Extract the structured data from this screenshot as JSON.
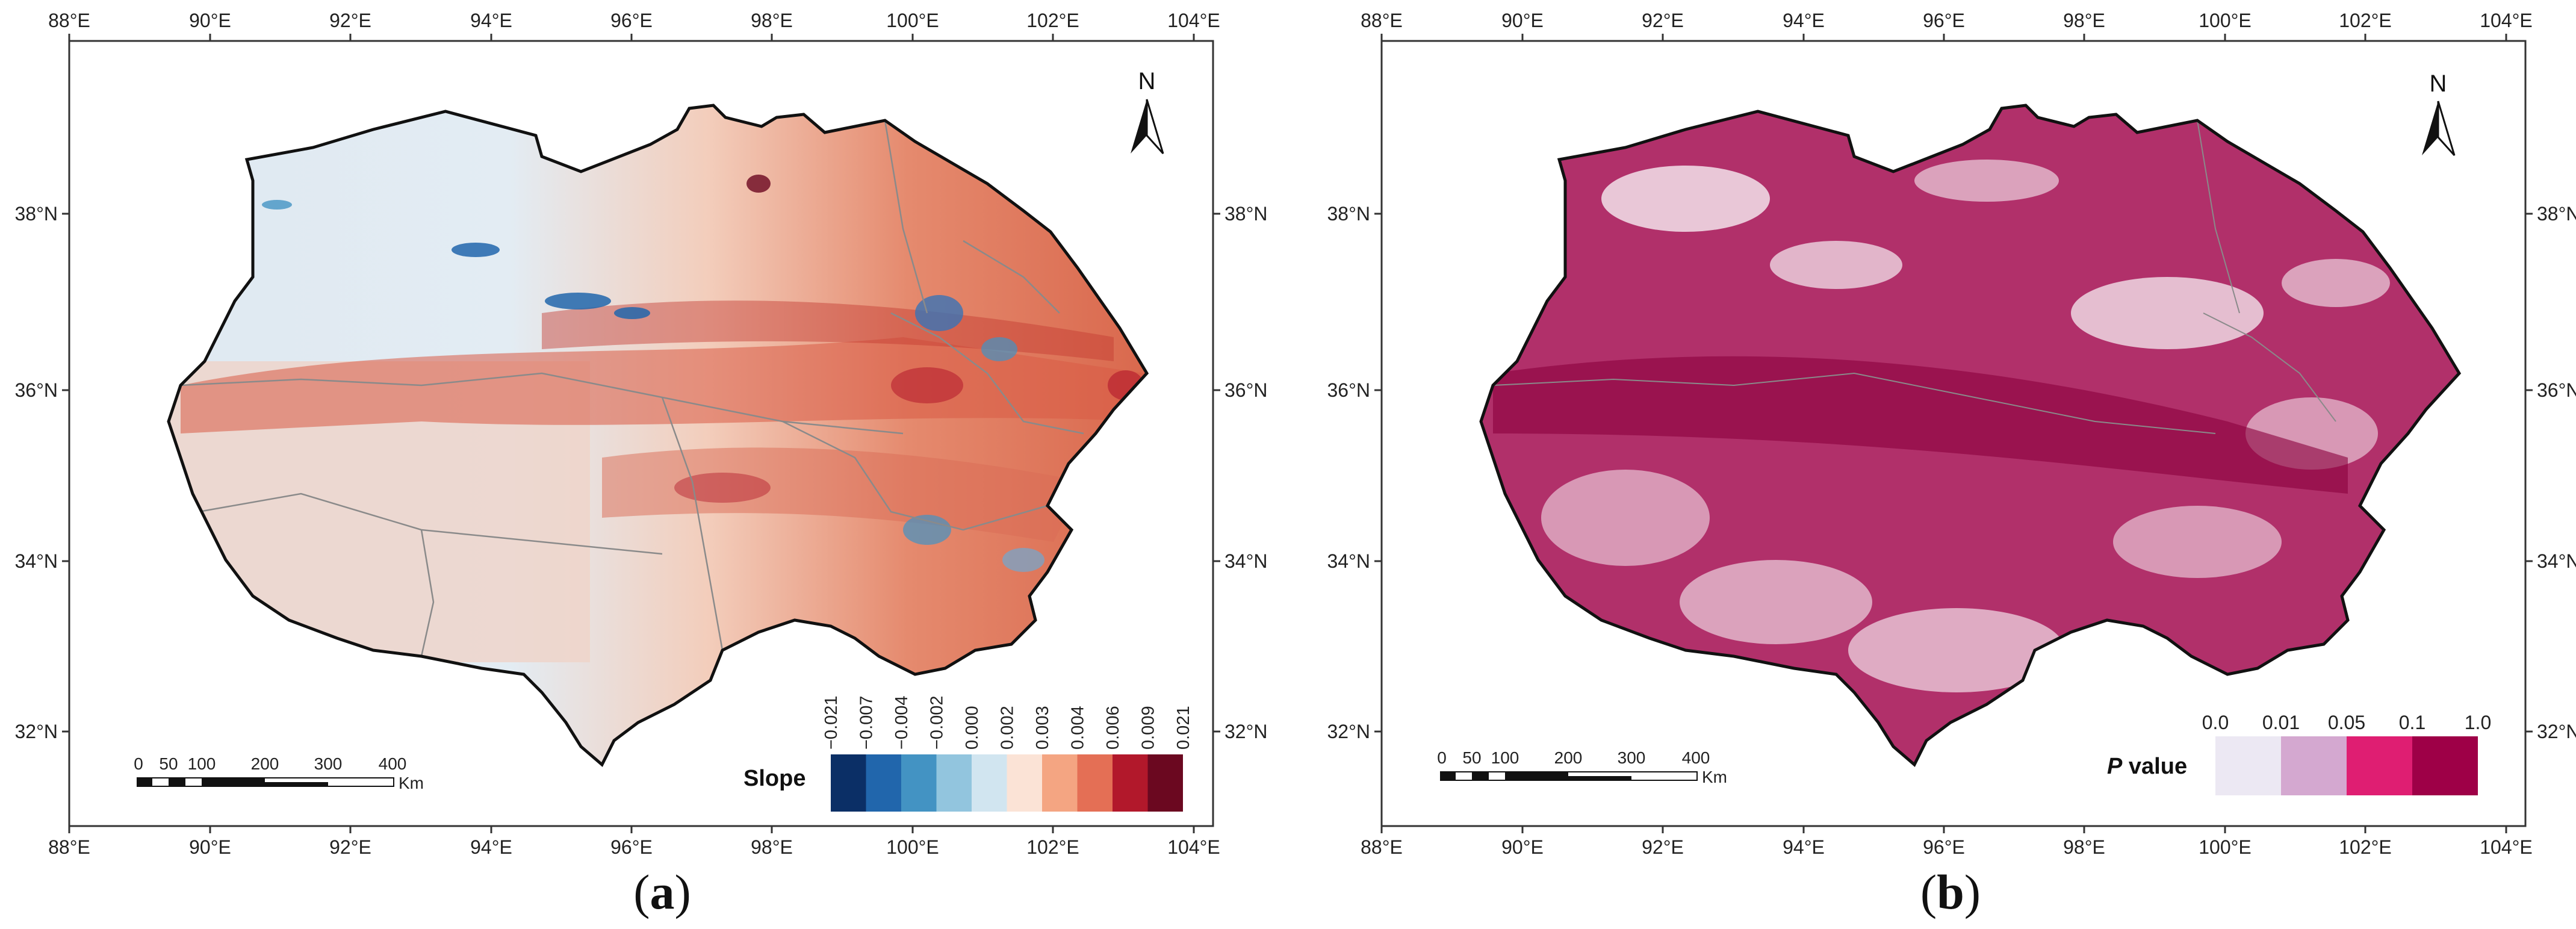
{
  "panels": [
    {
      "id": "a",
      "caption_open": "(",
      "caption_letter": "a",
      "caption_close": ")",
      "top_longitudes": [
        "88°E",
        "90°E",
        "92°E",
        "94°E",
        "96°E",
        "98°E",
        "100°E",
        "102°E",
        "104°E"
      ],
      "bottom_longitudes": [
        "88°E",
        "90°E",
        "92°E",
        "94°E",
        "96°E",
        "98°E",
        "100°E",
        "102°E",
        "104°E"
      ],
      "left_latitudes": [
        "38°N",
        "36°N",
        "34°N",
        "32°N"
      ],
      "right_latitudes": [
        "38°N",
        "36°N",
        "34°N",
        "32°N"
      ],
      "north_label": "N",
      "scale_labels": [
        "0",
        "50",
        "100",
        "200",
        "300",
        "400"
      ],
      "scale_unit": "Km",
      "legend": {
        "title": "Slope",
        "breaks": [
          "−0.021",
          "−0.007",
          "−0.004",
          "−0.002",
          "0.000",
          "0.002",
          "0.003",
          "0.004",
          "0.006",
          "0.009",
          "0.021"
        ],
        "colors": [
          "#0b2f66",
          "#2166ac",
          "#4393c3",
          "#92c5de",
          "#d1e5f0",
          "#fbe3d6",
          "#f4a582",
          "#e46f55",
          "#b2182b",
          "#6b0820"
        ]
      }
    },
    {
      "id": "b",
      "caption_open": "(",
      "caption_letter": "b",
      "caption_close": ")",
      "top_longitudes": [
        "88°E",
        "90°E",
        "92°E",
        "94°E",
        "96°E",
        "98°E",
        "100°E",
        "102°E",
        "104°E"
      ],
      "bottom_longitudes": [
        "88°E",
        "90°E",
        "92°E",
        "94°E",
        "96°E",
        "98°E",
        "100°E",
        "102°E",
        "104°E"
      ],
      "left_latitudes": [
        "38°N",
        "36°N",
        "34°N",
        "32°N"
      ],
      "right_latitudes": [
        "38°N",
        "36°N",
        "34°N",
        "32°N"
      ],
      "north_label": "N",
      "scale_labels": [
        "0",
        "50",
        "100",
        "200",
        "300",
        "400"
      ],
      "scale_unit": "Km",
      "legend": {
        "title_italic": "P",
        "title_rest": " value",
        "breaks": [
          "0.0",
          "0.01",
          "0.05",
          "0.1",
          "1.0"
        ],
        "colors": [
          "#ece8f3",
          "#d4a8d0",
          "#df1e72",
          "#9e0047"
        ]
      }
    }
  ]
}
